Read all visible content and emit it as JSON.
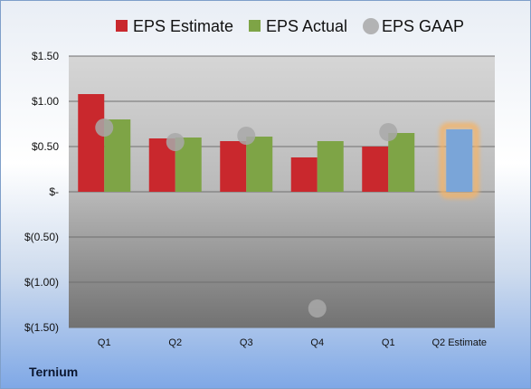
{
  "company": "Ternium",
  "colors": {
    "estimate": "#c9282d",
    "actual": "#7ea446",
    "gaap": "#a8a8a8",
    "highlight_bar": "#7aa5d8",
    "highlight_glow": "#f2b46a"
  },
  "chart_data": {
    "type": "bar",
    "categories": [
      "Q1",
      "Q2",
      "Q3",
      "Q4",
      "Q1",
      "Q2 Estimate"
    ],
    "series": [
      {
        "name": "EPS Estimate",
        "values": [
          1.08,
          0.59,
          0.56,
          0.38,
          0.5,
          null
        ]
      },
      {
        "name": "EPS Actual",
        "values": [
          0.8,
          0.6,
          0.61,
          0.56,
          0.65,
          0.69
        ]
      },
      {
        "name": "EPS GAAP",
        "type": "scatter",
        "values": [
          0.71,
          0.55,
          0.62,
          -1.29,
          0.66,
          null
        ]
      }
    ],
    "highlight_category": "Q2 Estimate",
    "ylim": [
      -1.5,
      1.5
    ],
    "yticks": [
      1.5,
      1.0,
      0.5,
      0,
      -0.5,
      -1.0,
      -1.5
    ],
    "ytick_labels": [
      "$1.50",
      "$1.00",
      "$0.50",
      "$-",
      "$(0.50)",
      "$(1.00)",
      "$(1.50)"
    ],
    "grid": true,
    "legend": "top"
  }
}
